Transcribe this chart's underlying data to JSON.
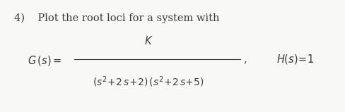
{
  "background_color": "#f8f8f6",
  "title_text": "4)    Plot the root loci for a system with",
  "title_fontsize": 10.5,
  "title_color": "#3a3a3a",
  "Gs_text": "$G\\,(s) =$",
  "Gs_fontsize": 10.5,
  "numerator_text": "$K$",
  "numerator_fontsize": 10.5,
  "denominator_text": "$(s^2\\!+\\!2\\,s\\!+\\!2)\\,(s^2\\!+\\!2\\,s\\!+\\!5)$",
  "denominator_fontsize": 10.0,
  "frac_line_color": "#3a3a3a",
  "comma_text": ",",
  "comma_fontsize": 10.5,
  "Hs_text": "$H(s)\\!=\\!1$",
  "Hs_fontsize": 10.5
}
